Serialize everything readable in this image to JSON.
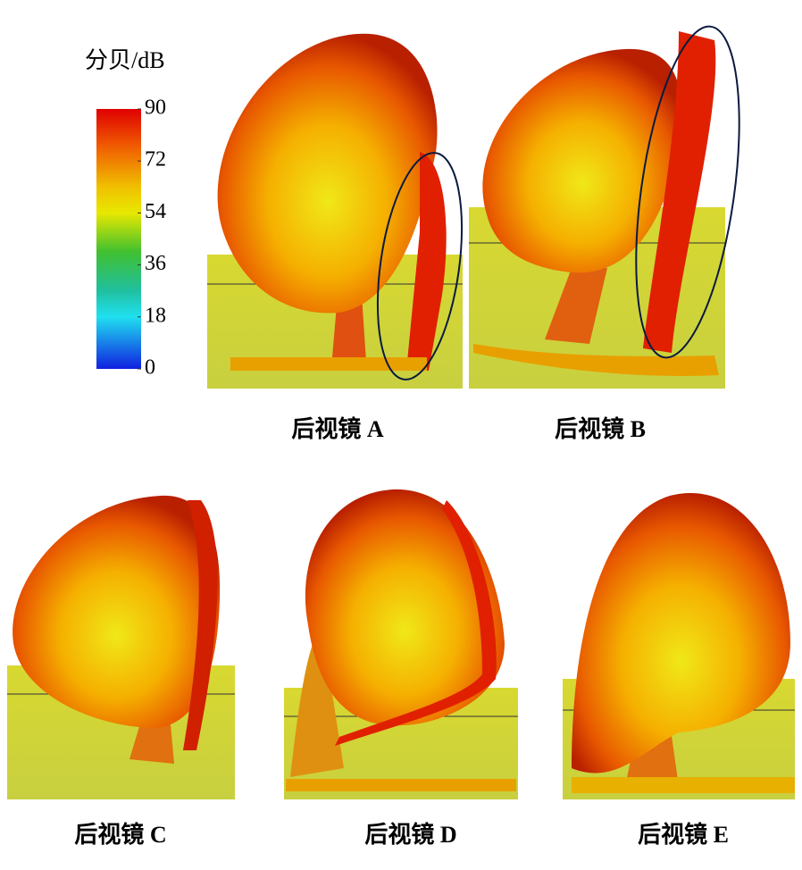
{
  "colorbar": {
    "title": "分贝/dB",
    "range": [
      0,
      90
    ],
    "ticks": [
      90,
      72,
      54,
      36,
      18,
      0
    ]
  },
  "panels": [
    {
      "caption": "后视镜 A"
    },
    {
      "caption": "后视镜 B"
    },
    {
      "caption": "后视镜 C"
    },
    {
      "caption": "后视镜 D"
    },
    {
      "caption": "后视镜 E"
    }
  ]
}
